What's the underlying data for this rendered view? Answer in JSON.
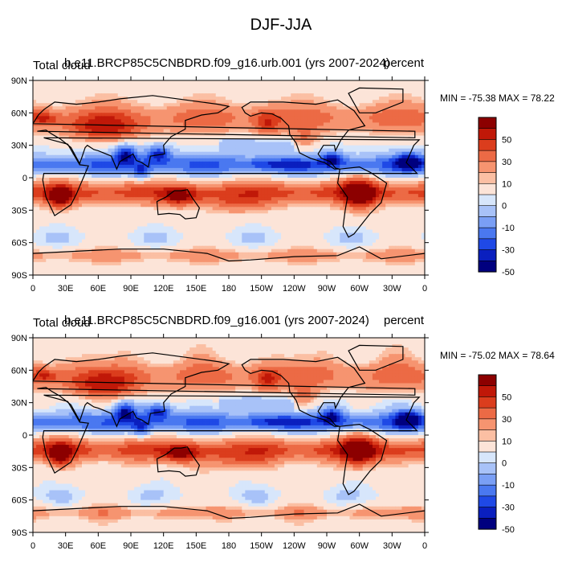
{
  "title": "DJF-JJA",
  "colors": {
    "levels": [
      "#00007f",
      "#0a1fbf",
      "#1f49e6",
      "#4a78f0",
      "#7a9ff5",
      "#a8c2f8",
      "#d7e6fb",
      "#fce4d8",
      "#fbbfa3",
      "#f69470",
      "#ec6a45",
      "#db3d1d",
      "#c01808",
      "#8c0000"
    ],
    "coast": "#000000"
  },
  "chart_data": [
    {
      "type": "heatmap",
      "left_label": "Total cloud",
      "center_label": "b.e11.BRCP85C5CNBDRD.f09_g16.urb.001 (yrs 2007-2024)",
      "right_label": "percent",
      "min_max_text": "MIN = -75.38 MAX =  78.22",
      "x_ticks": [
        "0",
        "30E",
        "60E",
        "90E",
        "120E",
        "150E",
        "180",
        "150W",
        "120W",
        "90W",
        "60W",
        "30W",
        "0"
      ],
      "y_ticks": [
        "90N",
        "60N",
        "30N",
        "0",
        "30S",
        "60S",
        "90S"
      ],
      "xlim": [
        0,
        360
      ],
      "ylim": [
        -90,
        90
      ],
      "colorbar_labels": [
        "50",
        "30",
        "10",
        "0",
        "-10",
        "-30",
        "-50"
      ],
      "min": -75.38,
      "max": 78.22,
      "variant": 0
    },
    {
      "type": "heatmap",
      "left_label": "Total cloud",
      "center_label": "b.e11.BRCP85C5CNBDRD.f09_g16.001 (yrs 2007-2024)",
      "right_label": "percent",
      "min_max_text": "MIN = -75.02 MAX =  78.64",
      "x_ticks": [
        "0",
        "30E",
        "60E",
        "90E",
        "120E",
        "150E",
        "180",
        "150W",
        "120W",
        "90W",
        "60W",
        "30W",
        "0"
      ],
      "y_ticks": [
        "90N",
        "60N",
        "30N",
        "0",
        "30S",
        "60S",
        "90S"
      ],
      "xlim": [
        0,
        360
      ],
      "ylim": [
        -90,
        90
      ],
      "colorbar_labels": [
        "50",
        "30",
        "10",
        "0",
        "-10",
        "-30",
        "-50"
      ],
      "min": -75.02,
      "max": 78.64,
      "variant": 1
    }
  ]
}
